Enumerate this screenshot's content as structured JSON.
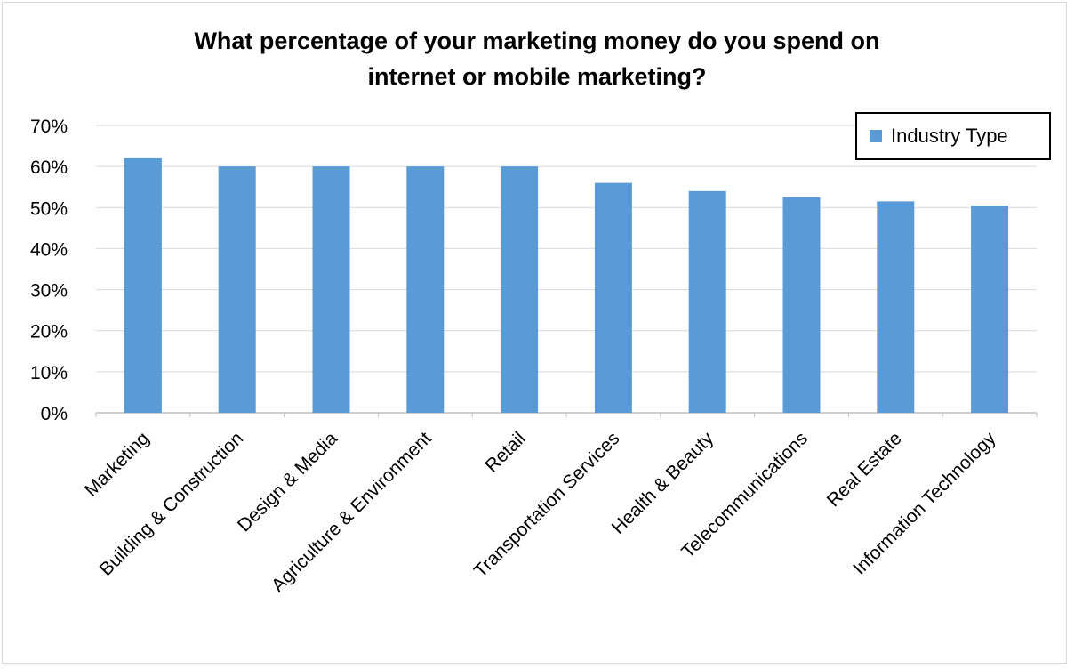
{
  "chart_data": {
    "type": "bar",
    "title": "What percentage of your marketing money do you spend on internet or mobile marketing?",
    "title_lines": [
      "What percentage of your marketing money do you spend on",
      "internet or mobile marketing?"
    ],
    "categories": [
      "Marketing",
      "Building & Construction",
      "Design & Media",
      "Agriculture & Environment",
      "Retail",
      "Transportation Services",
      "Health & Beauty",
      "Telecommunications",
      "Real Estate",
      "Information Technology"
    ],
    "series": [
      {
        "name": "Industry Type",
        "values": [
          62,
          60,
          60,
          60,
          60,
          56,
          54,
          52.5,
          51.5,
          50.5
        ],
        "color": "#5b9bd5"
      }
    ],
    "ylim": [
      0,
      70
    ],
    "yticks": [
      "0%",
      "10%",
      "20%",
      "30%",
      "40%",
      "50%",
      "60%",
      "70%"
    ],
    "ytick_values": [
      0,
      10,
      20,
      30,
      40,
      50,
      60,
      70
    ],
    "grid": true,
    "legend_position": "top-right",
    "gridline_color": "#d9d9d9"
  }
}
